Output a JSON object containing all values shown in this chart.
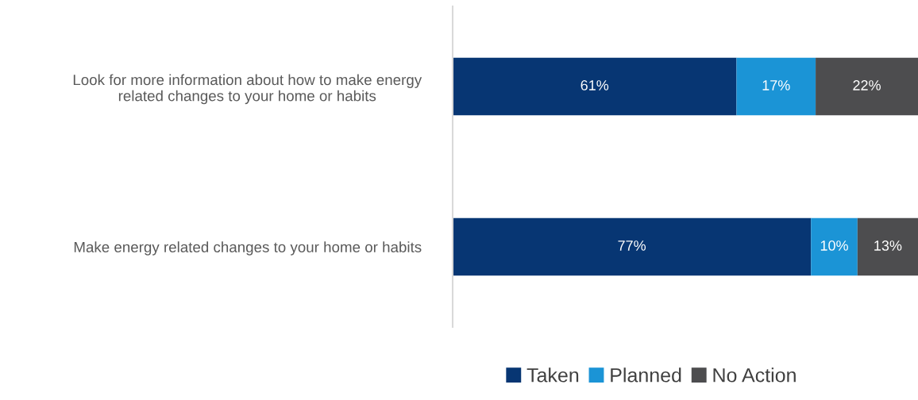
{
  "chart_data": {
    "type": "bar",
    "orientation": "horizontal",
    "stacked": true,
    "categories": [
      "Look for more information about how to make energy related changes to your home or habits",
      "Make energy related changes to your home or habits"
    ],
    "series": [
      {
        "name": "Taken",
        "color": "#073673",
        "values": [
          61,
          77
        ],
        "value_labels": [
          "61%",
          "77%"
        ]
      },
      {
        "name": "Planned",
        "color": "#1b94d6",
        "values": [
          17,
          10
        ],
        "value_labels": [
          "17%",
          "10%"
        ]
      },
      {
        "name": "No Action",
        "color": "#4d4d4f",
        "values": [
          22,
          13
        ],
        "value_labels": [
          "22%",
          "13%"
        ]
      }
    ],
    "xlim": [
      0,
      100
    ],
    "tick_labels": "y",
    "grid": false,
    "legend": "bottom"
  }
}
